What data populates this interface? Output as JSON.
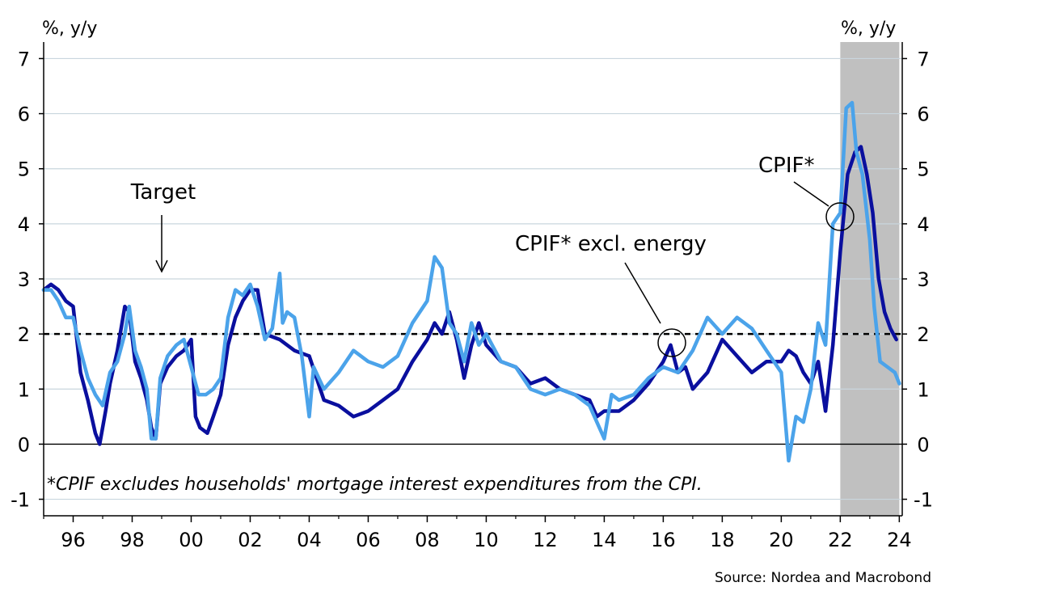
{
  "chart_data": {
    "type": "line",
    "left_axis_unit": "%, y/y",
    "right_axis_unit": "%, y/y",
    "ylim": [
      -1.3,
      7.3
    ],
    "y_ticks": [
      -1,
      0,
      1,
      2,
      3,
      4,
      5,
      6,
      7
    ],
    "y_tick_labels": [
      "-1",
      "0",
      "1",
      "2",
      "3",
      "4",
      "5",
      "6",
      "7"
    ],
    "xlim": [
      1995.0,
      2024.1
    ],
    "x_ticks": [
      1996,
      1998,
      2000,
      2002,
      2004,
      2006,
      2008,
      2010,
      2012,
      2014,
      2016,
      2018,
      2020,
      2022,
      2024
    ],
    "x_tick_labels": [
      "96",
      "98",
      "00",
      "02",
      "04",
      "06",
      "08",
      "10",
      "12",
      "14",
      "16",
      "18",
      "20",
      "22",
      "24"
    ],
    "grid": true,
    "target_line": {
      "value": 2.0,
      "label": "Target"
    },
    "shaded_region": {
      "from": 2022.0,
      "to": 2024.0,
      "color": "#c0c0c0"
    },
    "series": [
      {
        "name": "CPIF*",
        "color": "#0a0f9e",
        "x": [
          1995.0,
          1995.25,
          1995.5,
          1995.75,
          1996.0,
          1996.25,
          1996.5,
          1996.75,
          1996.9,
          1997.1,
          1997.25,
          1997.5,
          1997.75,
          1997.9,
          1998.1,
          1998.3,
          1998.5,
          1998.65,
          1998.8,
          1998.95,
          1999.2,
          1999.5,
          1999.75,
          2000.0,
          2000.15,
          2000.3,
          2000.55,
          2000.75,
          2001.0,
          2001.25,
          2001.5,
          2001.75,
          2002.0,
          2002.25,
          2002.5,
          2003.0,
          2003.5,
          2004.0,
          2004.5,
          2005.0,
          2005.5,
          2006.0,
          2006.5,
          2007.0,
          2007.5,
          2008.0,
          2008.25,
          2008.5,
          2008.75,
          2009.0,
          2009.25,
          2009.5,
          2009.75,
          2010.0,
          2010.5,
          2011.0,
          2011.5,
          2012.0,
          2012.5,
          2013.0,
          2013.5,
          2013.75,
          2014.0,
          2014.5,
          2015.0,
          2015.5,
          2016.0,
          2016.25,
          2016.5,
          2016.75,
          2017.0,
          2017.5,
          2018.0,
          2018.5,
          2019.0,
          2019.5,
          2020.0,
          2020.25,
          2020.5,
          2020.75,
          2021.0,
          2021.25,
          2021.5,
          2021.75,
          2022.0,
          2022.25,
          2022.5,
          2022.7,
          2022.9,
          2023.1,
          2023.3,
          2023.5,
          2023.7,
          2023.9
        ],
        "y": [
          2.8,
          2.9,
          2.8,
          2.6,
          2.5,
          1.3,
          0.8,
          0.2,
          0.0,
          0.6,
          1.1,
          1.7,
          2.5,
          2.4,
          1.5,
          1.2,
          0.8,
          0.3,
          0.1,
          1.1,
          1.4,
          1.6,
          1.7,
          1.9,
          0.5,
          0.3,
          0.2,
          0.5,
          0.9,
          1.8,
          2.3,
          2.6,
          2.8,
          2.8,
          2.0,
          1.9,
          1.7,
          1.6,
          0.8,
          0.7,
          0.5,
          0.6,
          0.8,
          1.0,
          1.5,
          1.9,
          2.2,
          2.0,
          2.4,
          1.9,
          1.2,
          1.8,
          2.2,
          1.8,
          1.5,
          1.4,
          1.1,
          1.2,
          1.0,
          0.9,
          0.8,
          0.5,
          0.6,
          0.6,
          0.8,
          1.1,
          1.5,
          1.8,
          1.3,
          1.4,
          1.0,
          1.3,
          1.9,
          1.6,
          1.3,
          1.5,
          1.5,
          1.7,
          1.6,
          1.3,
          1.1,
          1.5,
          0.6,
          1.8,
          3.5,
          4.9,
          5.3,
          5.4,
          4.9,
          4.2,
          3.0,
          2.4,
          2.1,
          1.9
        ]
      },
      {
        "name": "CPIF* excl. energy",
        "color": "#4ba3ea",
        "x": [
          1995.0,
          1995.25,
          1995.5,
          1995.75,
          1996.0,
          1996.25,
          1996.5,
          1996.75,
          1997.0,
          1997.25,
          1997.5,
          1997.75,
          1997.9,
          1998.1,
          1998.3,
          1998.5,
          1998.65,
          1998.8,
          1998.95,
          1999.2,
          1999.5,
          1999.75,
          2000.0,
          2000.25,
          2000.5,
          2000.75,
          2001.0,
          2001.25,
          2001.5,
          2001.75,
          2002.0,
          2002.25,
          2002.5,
          2002.75,
          2003.0,
          2003.1,
          2003.25,
          2003.5,
          2003.75,
          2004.0,
          2004.15,
          2004.5,
          2005.0,
          2005.5,
          2006.0,
          2006.5,
          2007.0,
          2007.5,
          2008.0,
          2008.25,
          2008.5,
          2008.75,
          2009.0,
          2009.25,
          2009.5,
          2009.75,
          2010.0,
          2010.5,
          2011.0,
          2011.5,
          2012.0,
          2012.5,
          2013.0,
          2013.5,
          2014.0,
          2014.25,
          2014.5,
          2015.0,
          2015.5,
          2016.0,
          2016.5,
          2017.0,
          2017.5,
          2018.0,
          2018.5,
          2019.0,
          2019.5,
          2020.0,
          2020.25,
          2020.5,
          2020.75,
          2021.0,
          2021.25,
          2021.5,
          2021.75,
          2022.0,
          2022.2,
          2022.4,
          2022.55,
          2022.75,
          2023.0,
          2023.15,
          2023.35,
          2023.6,
          2023.85,
          2024.0
        ],
        "y": [
          2.8,
          2.8,
          2.6,
          2.3,
          2.3,
          1.7,
          1.2,
          0.9,
          0.7,
          1.3,
          1.5,
          2.0,
          2.5,
          1.7,
          1.4,
          1.0,
          0.1,
          0.1,
          1.2,
          1.6,
          1.8,
          1.9,
          1.4,
          0.9,
          0.9,
          1.0,
          1.2,
          2.3,
          2.8,
          2.7,
          2.9,
          2.5,
          1.9,
          2.1,
          3.1,
          2.2,
          2.4,
          2.3,
          1.6,
          0.5,
          1.4,
          1.0,
          1.3,
          1.7,
          1.5,
          1.4,
          1.6,
          2.2,
          2.6,
          3.4,
          3.2,
          2.2,
          2.0,
          1.5,
          2.2,
          1.8,
          2.0,
          1.5,
          1.4,
          1.0,
          0.9,
          1.0,
          0.9,
          0.7,
          0.1,
          0.9,
          0.8,
          0.9,
          1.2,
          1.4,
          1.3,
          1.7,
          2.3,
          2.0,
          2.3,
          2.1,
          1.7,
          1.3,
          -0.3,
          0.5,
          0.4,
          1.0,
          2.2,
          1.8,
          4.0,
          4.2,
          6.1,
          6.2,
          5.3,
          4.9,
          3.7,
          2.5,
          1.5,
          1.4,
          1.3,
          1.1
        ]
      }
    ],
    "annotations": [
      {
        "text": "CPIF*"
      },
      {
        "text": "CPIF* excl. energy"
      }
    ],
    "footnote": "*CPIF excludes households' mortgage interest expenditures from the CPI.",
    "source": "Source: Nordea and Macrobond"
  }
}
